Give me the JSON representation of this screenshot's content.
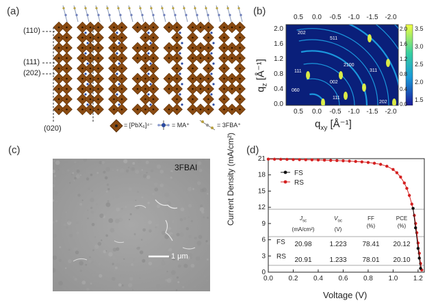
{
  "panels": {
    "a": {
      "label": "(a)",
      "planes": [
        "(110)",
        "(111)",
        "(202)",
        "(020)"
      ],
      "legend": [
        {
          "text": "= [PbX₆]⁴⁻",
          "color": "#8a4b12"
        },
        {
          "text": "= MA⁺",
          "color": "#2b4aa0"
        },
        {
          "text": "= 3FBA⁺",
          "color": "#b8a040"
        }
      ]
    },
    "b": {
      "label": "(b)",
      "x_title": "q",
      "x_sub": "xy",
      "x_unit": " [Å⁻¹]",
      "y_title": "q",
      "y_sub": "z",
      "y_unit": " [Å⁻¹]",
      "x_ticks": [
        "0.5",
        "0.0",
        "-0.5",
        "-1.0",
        "-1.5",
        "-2.0"
      ],
      "y_ticks": [
        "0.0",
        "0.4",
        "0.8",
        "1.2",
        "1.6",
        "2.0"
      ],
      "colorbar_ticks": [
        "3.5",
        "3.0",
        "2.5",
        "2.0",
        "1.5"
      ],
      "peaks": [
        "202",
        "511",
        "111",
        "2100",
        "311",
        "002",
        "060",
        "111",
        "202"
      ],
      "colors": {
        "bg": "#0a1f7a",
        "ring": "#22c0ff",
        "hot": "#f2ff40"
      }
    },
    "c": {
      "label": "(c)",
      "sample": "3FBAI",
      "scale": "1 μm"
    },
    "d": {
      "label": "(d)",
      "legend": [
        {
          "name": "FS",
          "color": "#111111"
        },
        {
          "name": "RS",
          "color": "#d42020"
        }
      ],
      "table": {
        "headers": [
          "J_sc\n(mA/cm²)",
          "V_oc\n(V)",
          "FF\n(%)",
          "PCE\n(%)"
        ],
        "rows": [
          {
            "label": "FS",
            "values": [
              "20.98",
              "1.223",
              "78.41",
              "20.12"
            ]
          },
          {
            "label": "RS",
            "values": [
              "20.91",
              "1.233",
              "78.01",
              "20.10"
            ]
          }
        ]
      }
    }
  },
  "chart_data": [
    {
      "type": "scatter",
      "title": "",
      "xlabel": "Voltage (V)",
      "ylabel": "Current Density (mA/cm²)",
      "xlim": [
        0,
        1.25
      ],
      "ylim": [
        0,
        21
      ],
      "xticks": [
        "0.0",
        "0.2",
        "0.4",
        "0.6",
        "0.8",
        "1.0",
        "1.2"
      ],
      "yticks": [
        "0",
        "3",
        "6",
        "9",
        "12",
        "15",
        "18",
        "21"
      ],
      "series": [
        {
          "name": "RS",
          "color": "#d42020",
          "x": [
            0,
            0.05,
            0.1,
            0.15,
            0.2,
            0.25,
            0.3,
            0.35,
            0.4,
            0.45,
            0.5,
            0.55,
            0.6,
            0.65,
            0.7,
            0.75,
            0.8,
            0.85,
            0.9,
            0.95,
            1.0,
            1.03,
            1.06,
            1.09,
            1.11,
            1.13,
            1.15,
            1.17,
            1.18,
            1.19,
            1.2,
            1.21,
            1.22,
            1.23
          ],
          "y": [
            20.91,
            20.9,
            20.88,
            20.86,
            20.84,
            20.82,
            20.8,
            20.78,
            20.75,
            20.72,
            20.68,
            20.64,
            20.6,
            20.55,
            20.48,
            20.4,
            20.3,
            20.15,
            19.95,
            19.6,
            19.0,
            18.4,
            17.6,
            16.5,
            15.5,
            14.2,
            12.6,
            10.5,
            9.0,
            7.3,
            5.4,
            3.5,
            1.6,
            0.4
          ]
        },
        {
          "name": "FS",
          "color": "#111111",
          "x": [
            1.16,
            1.18,
            1.2,
            1.21,
            1.22
          ],
          "y": [
            11.8,
            8.2,
            4.4,
            2.6,
            0.7
          ]
        }
      ]
    }
  ]
}
